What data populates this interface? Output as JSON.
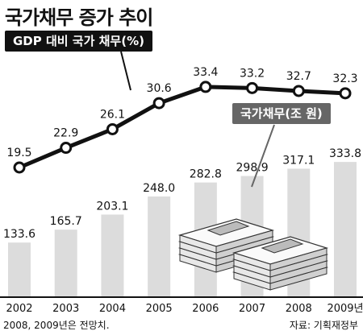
{
  "title": "국가채무 증가 추이",
  "note": "2008, 2009년은 전망치.",
  "source": "자료: 기획재정부",
  "colors": {
    "line": "#111111",
    "bar": "#dcdcdc",
    "gdp_label_bg": "#111111",
    "debt_label_bg": "#666666"
  },
  "chart_data": [
    {
      "type": "line",
      "title": "GDP 대비 국가 채무(%)",
      "x": [
        "2002",
        "2003",
        "2004",
        "2005",
        "2006",
        "2007",
        "2008",
        "2009년"
      ],
      "series": [
        {
          "values": [
            19.5,
            22.9,
            26.1,
            30.6,
            33.4,
            33.2,
            32.7,
            32.3
          ]
        }
      ],
      "value_labels": [
        "19.5",
        "22.9",
        "26.1",
        "30.6",
        "33.4",
        "33.2",
        "32.7",
        "32.3"
      ]
    },
    {
      "type": "bar",
      "title": "국가채무(조 원)",
      "categories": [
        "2002",
        "2003",
        "2004",
        "2005",
        "2006",
        "2007",
        "2008",
        "2009년"
      ],
      "values": [
        133.6,
        165.7,
        203.1,
        248.0,
        282.8,
        298.9,
        317.1,
        333.8
      ],
      "value_labels": [
        "133.6",
        "165.7",
        "203.1",
        "248.0",
        "282.8",
        "298.9",
        "317.1",
        "333.8"
      ]
    }
  ]
}
